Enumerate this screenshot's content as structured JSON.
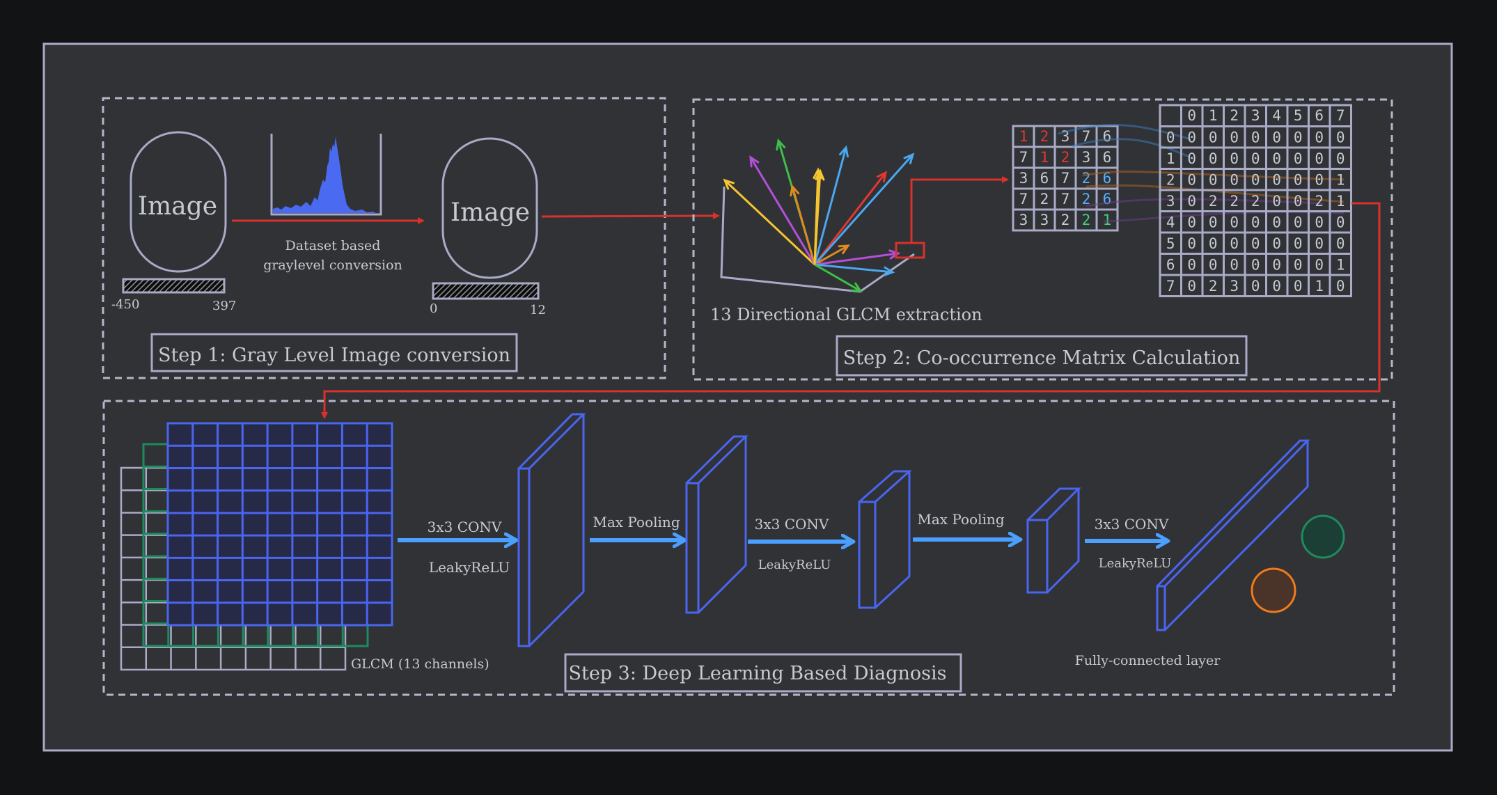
{
  "colors": {
    "background": "#121314",
    "panel": "#303236",
    "outline": "#a9abc6",
    "arrow_red": "#d8322b",
    "arrow_blue": "#4a9fff",
    "layer_blue": "#4a65ef",
    "grid_green": "#1f8a5e",
    "circle_green": "#1f8a5e",
    "circle_orange": "#f07b1a",
    "highlight_red": "#e5372f",
    "highlight_blue": "#5aaeff",
    "highlight_green": "#3fd37a"
  },
  "step1": {
    "title": "Step 1: Gray Level Image conversion",
    "image_label_1": "Image",
    "image_label_2": "Image",
    "range_1": {
      "min": "-450",
      "max": "397"
    },
    "range_2": {
      "min": "0",
      "max": "12"
    },
    "histogram_caption": [
      "Dataset based",
      "graylevel  conversion"
    ]
  },
  "step2": {
    "title": "Step 2: Co-occurrence Matrix Calculation",
    "glcm_caption": "13 Directional GLCM extraction",
    "direction_arrow_colors": [
      "#f5c431",
      "#b54fd8",
      "#3fbf4a",
      "#e08a1f",
      "#f5c431",
      "#4aa8f0",
      "#e5372f",
      "#4aa8f0",
      "#e08a1f",
      "#b54fd8",
      "#4aa8f0",
      "#3fbf4a",
      "#f5c431"
    ],
    "image_patch": [
      [
        "1",
        "2",
        "3",
        "7",
        "6"
      ],
      [
        "7",
        "1",
        "2",
        "3",
        "6"
      ],
      [
        "3",
        "6",
        "7",
        "2",
        "6"
      ],
      [
        "7",
        "2",
        "7",
        "2",
        "6"
      ],
      [
        "3",
        "3",
        "2",
        "2",
        "1"
      ]
    ],
    "glcm_header": [
      "0",
      "1",
      "2",
      "3",
      "4",
      "5",
      "6",
      "7"
    ],
    "glcm_rows": [
      {
        "label": "0",
        "values": [
          "0",
          "0",
          "0",
          "0",
          "0",
          "0",
          "0",
          "0"
        ]
      },
      {
        "label": "1",
        "values": [
          "0",
          "0",
          "0",
          "0",
          "0",
          "0",
          "0",
          "0"
        ]
      },
      {
        "label": "2",
        "values": [
          "0",
          "0",
          "0",
          "0",
          "0",
          "0",
          "0",
          "1"
        ]
      },
      {
        "label": "3",
        "values": [
          "0",
          "2",
          "2",
          "2",
          "0",
          "0",
          "2",
          "1"
        ]
      },
      {
        "label": "4",
        "values": [
          "0",
          "0",
          "0",
          "0",
          "0",
          "0",
          "0",
          "0"
        ]
      },
      {
        "label": "5",
        "values": [
          "0",
          "0",
          "0",
          "0",
          "0",
          "0",
          "0",
          "0"
        ]
      },
      {
        "label": "6",
        "values": [
          "0",
          "0",
          "0",
          "0",
          "0",
          "0",
          "0",
          "1"
        ]
      },
      {
        "label": "7",
        "values": [
          "0",
          "2",
          "3",
          "0",
          "0",
          "0",
          "1",
          "0"
        ]
      }
    ]
  },
  "step3": {
    "title": "Step 3: Deep Learning Based Diagnosis",
    "input_caption": "GLCM (13 channels)",
    "op1_top": "3x3 CONV",
    "op1_bottom": "LeakyReLU",
    "op2_top": "Max Pooling",
    "op3_top": "3x3 CONV",
    "op3_bottom": "LeakyReLU",
    "op4_top": "Max Pooling",
    "op5_top": "3x3 CONV",
    "op5_bottom": "LeakyReLU",
    "fc_caption": "Fully-connected  layer"
  }
}
